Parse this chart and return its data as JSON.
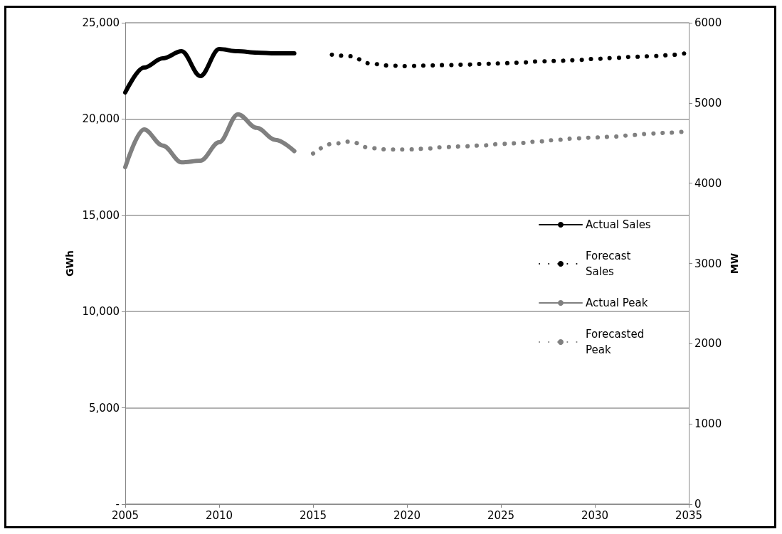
{
  "chart_data": {
    "type": "line",
    "ylabel": "GWh",
    "y2label": "MW",
    "xlim": [
      2005,
      2035
    ],
    "xticks": [
      2005,
      2010,
      2015,
      2020,
      2025,
      2030,
      2035
    ],
    "ylim": [
      0,
      25000
    ],
    "yticks": [
      {
        "value": 0,
        "label": "-"
      },
      {
        "value": 5000,
        "label": "5,000"
      },
      {
        "value": 10000,
        "label": "10,000"
      },
      {
        "value": 15000,
        "label": "15,000"
      },
      {
        "value": 20000,
        "label": "20,000"
      },
      {
        "value": 25000,
        "label": "25,000"
      }
    ],
    "y2lim": [
      0,
      6000
    ],
    "y2ticks": [
      0,
      1000,
      2000,
      3000,
      4000,
      5000,
      6000
    ],
    "grid": "y",
    "legend": "right",
    "marker": "none",
    "series": [
      {
        "name": "Actual Sales",
        "color": "#000000",
        "line_style": "solid",
        "x": [
          2005,
          2006,
          2007,
          2008,
          2009,
          2010,
          2011,
          2012,
          2013,
          2014
        ],
        "values": [
          21380,
          22670,
          23150,
          23520,
          22230,
          23630,
          23520,
          23450,
          23410,
          23410
        ]
      },
      {
        "name": "Forecast Sales",
        "color": "#000000",
        "line_style": "dotted",
        "x": [
          2016,
          2017,
          2018,
          2019,
          2020,
          2021,
          2022,
          2023,
          2024,
          2025,
          2026,
          2027,
          2028,
          2029,
          2030,
          2031,
          2032,
          2033,
          2034,
          2035
        ],
        "values": [
          23340,
          23260,
          22890,
          22780,
          22750,
          22780,
          22800,
          22820,
          22860,
          22890,
          22930,
          22990,
          23020,
          23060,
          23120,
          23170,
          23230,
          23260,
          23320,
          23450
        ]
      },
      {
        "name": "Actual Peak",
        "color": "#808080",
        "line_style": "solid",
        "axis": "y2",
        "x": [
          2005,
          2006,
          2007,
          2008,
          2009,
          2010,
          2011,
          2012,
          2013,
          2014
        ],
        "values": [
          4200,
          4670,
          4470,
          4260,
          4280,
          4510,
          4860,
          4690,
          4540,
          4400
        ]
      },
      {
        "name": "Forecasted Peak",
        "color": "#808080",
        "line_style": "dotted",
        "axis": "y2",
        "x": [
          2015,
          2016,
          2017,
          2018,
          2019,
          2020,
          2021,
          2022,
          2023,
          2024,
          2025,
          2026,
          2027,
          2028,
          2029,
          2030,
          2031,
          2032,
          2033,
          2034,
          2035
        ],
        "values": [
          4370,
          4490,
          4520,
          4440,
          4420,
          4420,
          4430,
          4450,
          4460,
          4470,
          4490,
          4500,
          4520,
          4540,
          4560,
          4570,
          4580,
          4600,
          4620,
          4630,
          4650
        ]
      }
    ]
  }
}
